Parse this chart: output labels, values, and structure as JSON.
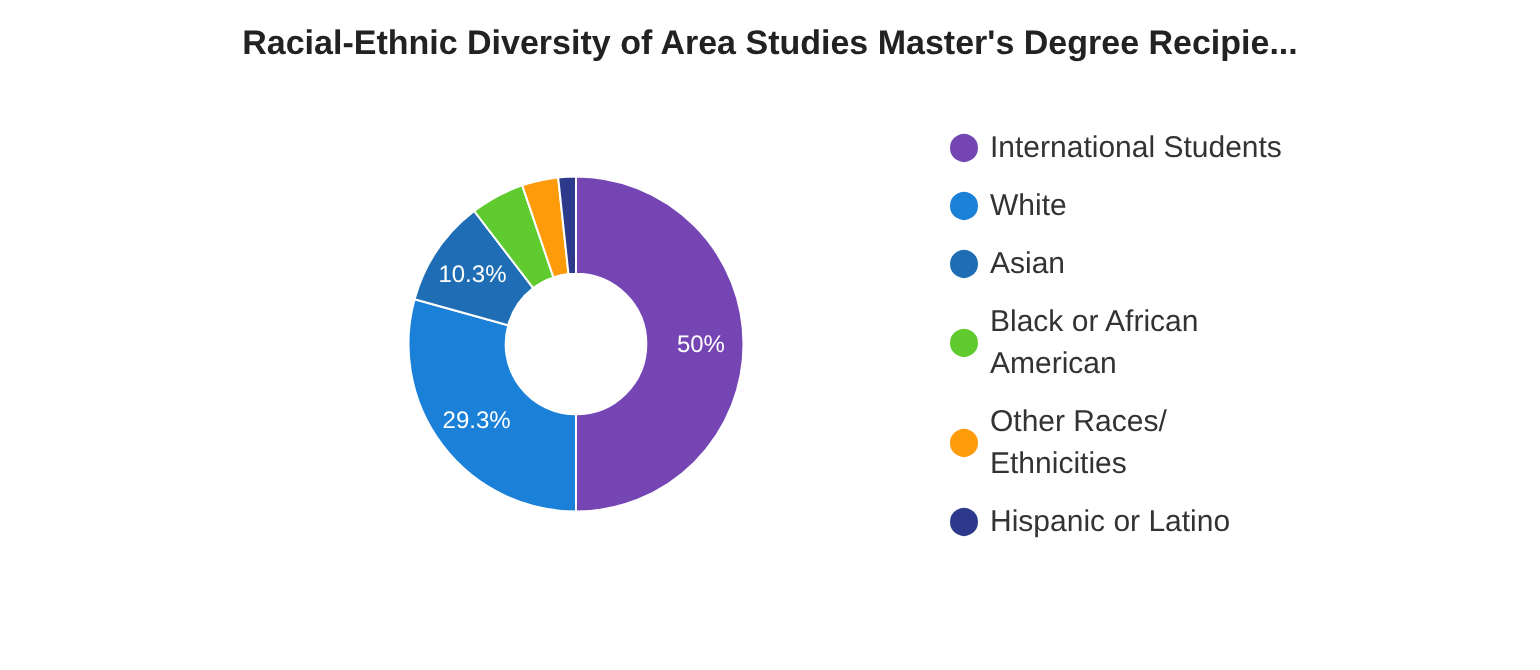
{
  "chart_data": {
    "type": "donut",
    "title": "Racial-Ethnic Diversity of Area Studies Master's Degree Recipie...",
    "categories": [
      "International Students",
      "White",
      "Asian",
      "Black or African American",
      "Other Races/ Ethnicities",
      "Hispanic or Latino"
    ],
    "values": [
      50,
      29.3,
      10.3,
      5.2,
      3.5,
      1.7
    ],
    "colors": [
      "#7546b3",
      "#1a80d8",
      "#1f6eb5",
      "#5fcb2f",
      "#fd9b0b",
      "#2d3a8c"
    ],
    "value_labels": [
      "50%",
      "29.3%",
      "10.3%",
      null,
      null,
      null
    ],
    "legend": "right"
  }
}
